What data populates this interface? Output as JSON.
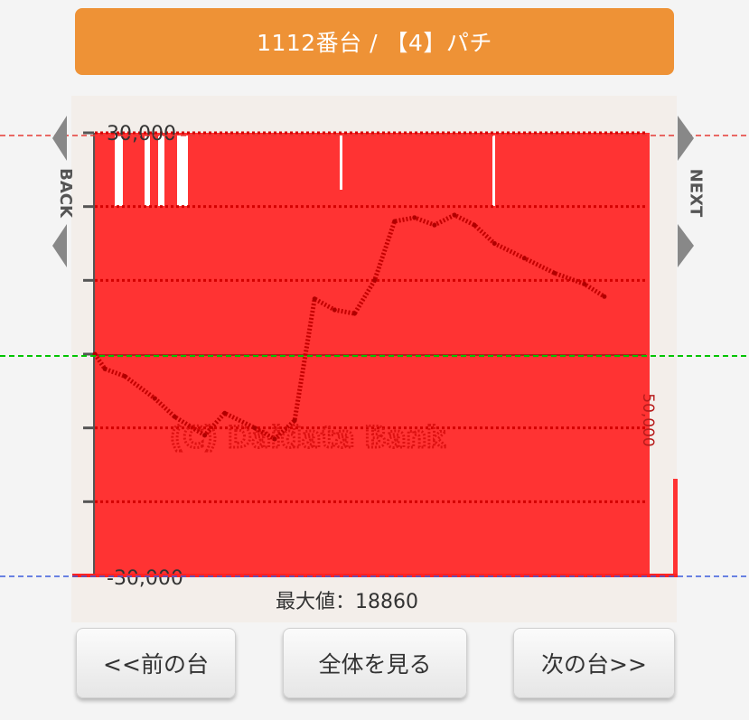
{
  "header": {
    "title": "1112番台 / 【4】パチ"
  },
  "nav": {
    "back_label": "BACK",
    "next_label": "NEXT"
  },
  "chart_data": {
    "type": "line",
    "y_ticks": [
      "30,000",
      "-30,000"
    ],
    "right_label": "50,000",
    "watermark": "(C) Daidata Bank",
    "ylim": [
      -30000,
      30000
    ],
    "grid": true,
    "series": [
      {
        "points": [
          [
            0,
            0
          ],
          [
            5,
            -2000
          ],
          [
            15,
            -3000
          ],
          [
            30,
            -6000
          ],
          [
            40,
            -8500
          ],
          [
            55,
            -11000
          ],
          [
            65,
            -8000
          ],
          [
            80,
            -10000
          ],
          [
            90,
            -11500
          ],
          [
            100,
            -9000
          ],
          [
            110,
            7500
          ],
          [
            120,
            6000
          ],
          [
            130,
            5500
          ],
          [
            140,
            10000
          ],
          [
            150,
            18000
          ],
          [
            160,
            18500
          ],
          [
            170,
            17500
          ],
          [
            180,
            18860
          ],
          [
            190,
            17500
          ],
          [
            200,
            15000
          ],
          [
            215,
            13000
          ],
          [
            230,
            11000
          ],
          [
            245,
            9500
          ],
          [
            255,
            7800
          ]
        ],
        "xmax": 400
      }
    ],
    "reference_lines": {
      "top": "#e53935",
      "zero": "#00c400",
      "bottom": "#3b5bdb"
    },
    "fill_color": "#ff3333"
  },
  "footer": {
    "max_label": "最大値：18860"
  },
  "buttons": {
    "prev": "<<前の台",
    "all": "全体を見る",
    "next": "次の台>>"
  }
}
